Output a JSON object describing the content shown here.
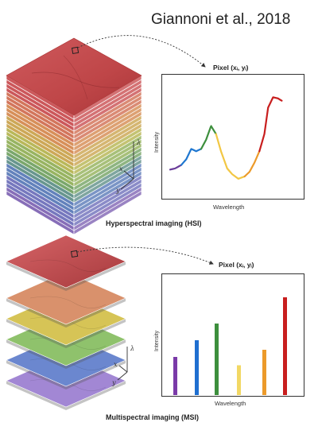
{
  "citation": "Giannoni et al., 2018",
  "hsi": {
    "caption": "Hyperspectral imaging (HSI)",
    "plot_title": "Pixel (xᵢ, yᵢ)",
    "ylabel": "Intensity",
    "xlabel": "Wavelength",
    "axis_letters": [
      "λ",
      "x",
      "y"
    ]
  },
  "msi": {
    "caption": "Multispectral imaging (MSI)",
    "plot_title": "Pixel (xᵢ, yᵢ)",
    "ylabel": "Intensity",
    "xlabel": "Wavelength",
    "axis_letters": [
      "λ",
      "x",
      "y"
    ]
  },
  "chart_data": [
    {
      "type": "line",
      "xlabel": "Wavelength",
      "ylabel": "Intensity",
      "series": [
        {
          "color": "#6a3d9a",
          "points": [
            [
              0,
              0.24
            ],
            [
              0.04,
              0.25
            ],
            [
              0.09,
              0.28
            ]
          ]
        },
        {
          "color": "#1f77d0",
          "points": [
            [
              0.09,
              0.28
            ],
            [
              0.13,
              0.33
            ],
            [
              0.17,
              0.42
            ],
            [
              0.21,
              0.4
            ],
            [
              0.25,
              0.42
            ]
          ]
        },
        {
          "color": "#3d8f3d",
          "points": [
            [
              0.25,
              0.42
            ],
            [
              0.29,
              0.5
            ],
            [
              0.33,
              0.62
            ],
            [
              0.37,
              0.55
            ]
          ]
        },
        {
          "color": "#f2c744",
          "points": [
            [
              0.37,
              0.55
            ],
            [
              0.41,
              0.4
            ],
            [
              0.46,
              0.25
            ],
            [
              0.5,
              0.2
            ],
            [
              0.55,
              0.16
            ],
            [
              0.6,
              0.18
            ]
          ]
        },
        {
          "color": "#ec9a2a",
          "points": [
            [
              0.6,
              0.18
            ],
            [
              0.64,
              0.22
            ],
            [
              0.68,
              0.3
            ],
            [
              0.72,
              0.4
            ]
          ]
        },
        {
          "color": "#c81e1e",
          "points": [
            [
              0.72,
              0.4
            ],
            [
              0.76,
              0.55
            ],
            [
              0.79,
              0.78
            ],
            [
              0.83,
              0.87
            ],
            [
              0.87,
              0.86
            ],
            [
              0.9,
              0.84
            ]
          ]
        }
      ]
    },
    {
      "type": "bar",
      "xlabel": "Wavelength",
      "ylabel": "Intensity",
      "values": [
        0.32,
        0.46,
        0.6,
        0.25,
        0.38,
        0.82
      ],
      "colors": [
        "#7a3aa8",
        "#1f6fd0",
        "#3d8f3d",
        "#f2d864",
        "#ec9a2a",
        "#c81e1e"
      ]
    }
  ]
}
